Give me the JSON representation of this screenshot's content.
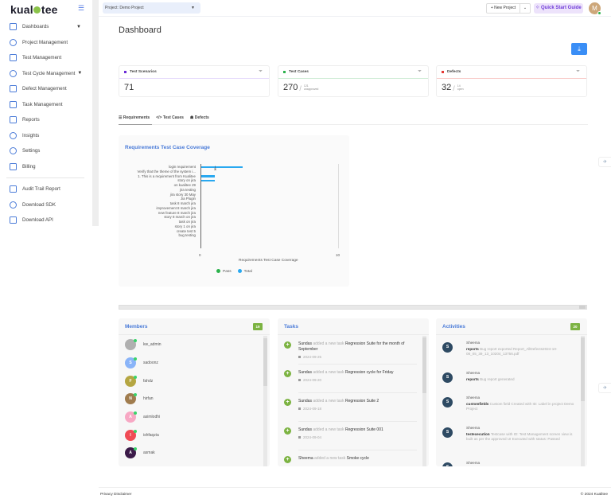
{
  "app": {
    "logo": "kualitee",
    "collapse_icon": "collapse-menu-icon"
  },
  "sidebar": {
    "items": [
      {
        "label": "Dashboards",
        "icon": "dashboard-icon",
        "has_caret": true
      },
      {
        "label": "Project Management",
        "icon": "project-icon"
      },
      {
        "label": "Test Management",
        "icon": "test-management-icon"
      },
      {
        "label": "Test Cycle Management",
        "icon": "test-cycle-icon",
        "has_caret": true
      },
      {
        "label": "Defect Management",
        "icon": "defect-icon"
      },
      {
        "label": "Task Management",
        "icon": "task-icon"
      },
      {
        "label": "Reports",
        "icon": "reports-icon"
      },
      {
        "label": "Insights",
        "icon": "insights-icon"
      },
      {
        "label": "Settings",
        "icon": "settings-icon"
      },
      {
        "label": "Billing",
        "icon": "billing-icon"
      }
    ],
    "secondary_items": [
      {
        "label": "Audit Trail Report",
        "icon": "audit-icon"
      },
      {
        "label": "Download SDK",
        "icon": "sdk-icon"
      },
      {
        "label": "Download API",
        "icon": "api-icon"
      }
    ]
  },
  "topbar": {
    "project_label": "Project:",
    "project_value": "Demo Project",
    "new_project": "+ New Project",
    "quick_start": "Quick Start Guide",
    "avatar_initial": "M"
  },
  "page": {
    "title": "Dashboard"
  },
  "stats": [
    {
      "label": "Test Scenarios",
      "value": "71",
      "color": "#6a2bd8",
      "accent": "#e4d9fb"
    },
    {
      "label": "Test Cases",
      "value": "270",
      "sub_value": "121",
      "sub_label": "unapproved",
      "color": "#2bb24c",
      "accent": "#cdebd4"
    },
    {
      "label": "Defects",
      "value": "32",
      "sub_value": "14",
      "sub_label": "open",
      "color": "#e53935",
      "accent": "#f8c9c7"
    }
  ],
  "tabs": [
    {
      "label": "Requirements",
      "icon": "list-icon",
      "active": true
    },
    {
      "label": "Test Cases",
      "icon": "code-icon"
    },
    {
      "label": "Defects",
      "icon": "bug-icon"
    }
  ],
  "chart_data": {
    "type": "bar",
    "title": "Requirements Test Case Coverage",
    "orientation": "horizontal",
    "categories": [
      "login requirement",
      "Verify that the theme of the system i...",
      "1. This is a requirement from Kualitee",
      "story on jira",
      "on kualitee 29",
      "jira testing",
      "jira story 30 May",
      "Jia Plugin",
      "task 8 march jira",
      "improvement 8 march jira",
      "new feature 8 march jira",
      "story 8 march on jira",
      "task on jira",
      "story 1 on jira",
      "create test 5",
      "bug testing"
    ],
    "series": [
      {
        "name": "Pass",
        "color": "#2bb24c",
        "values": [
          0,
          0,
          0,
          0,
          0,
          0,
          0,
          0,
          0,
          0,
          0,
          0,
          0,
          0,
          0,
          0
        ]
      },
      {
        "name": "Total",
        "color": "#29a8f0",
        "values": [
          3,
          0,
          1,
          1,
          0,
          0,
          0,
          0,
          0,
          0,
          0,
          0,
          0,
          0,
          0,
          0
        ]
      }
    ],
    "xlabel": "Requirements Test Case Coverage",
    "ylabel": "",
    "xlim": [
      0,
      10
    ],
    "x_ticks": [
      "0",
      "10"
    ],
    "legend_position": "bottom",
    "grid": false
  },
  "chart_ui": {
    "download_icon": "download-icon"
  },
  "members": {
    "title": "Members",
    "count": "19",
    "items": [
      {
        "name": "kw_admin",
        "initial": "",
        "color": "#b0b0b0"
      },
      {
        "name": "sadoonz",
        "initial": "S",
        "color": "#8ab4f8"
      },
      {
        "name": "fahdz",
        "initial": "F",
        "color": "#b5a642"
      },
      {
        "name": "hirfan",
        "initial": "N",
        "color": "#a07c4e"
      },
      {
        "name": "asimlodhi",
        "initial": "A",
        "color": "#f7a8c4"
      },
      {
        "name": "ishfaqzia",
        "initial": "I",
        "color": "#f04b55"
      },
      {
        "name": "asmak",
        "initial": "A",
        "color": "#3b1a48"
      }
    ]
  },
  "tasks": {
    "title": "Tasks",
    "items": [
      {
        "user": "Sundas",
        "action": "added a new task",
        "task": "Regression Suite for the month of September",
        "date": "2024-09-25"
      },
      {
        "user": "Sundas",
        "action": "added a new task",
        "task": "Regression cycle for Friday",
        "date": "2024-09-20"
      },
      {
        "user": "Sundas",
        "action": "added a new task",
        "task": "Regression Suite 2",
        "date": "2024-09-18"
      },
      {
        "user": "Sundas",
        "action": "added a new task",
        "task": "Regression Suite 001",
        "date": "2024-09-04"
      },
      {
        "user": "Sheema",
        "action": "added a new task",
        "task": "Smoke cycle",
        "date": ""
      }
    ]
  },
  "activities": {
    "title": "Activities",
    "count": "20",
    "items": [
      {
        "user": "Sheema",
        "initial": "S",
        "type": "reports",
        "message": "Bug report exported Report_AllDefects2024-10-08_05_39_13_10204_13756.pdf"
      },
      {
        "user": "Sheema",
        "initial": "S",
        "type": "reports",
        "message": "Bug report generated"
      },
      {
        "user": "Sheema",
        "initial": "S",
        "type": "customfields",
        "message": "Custom field Created with ID: Label in project Demo Project"
      },
      {
        "user": "Sheema",
        "initial": "S",
        "type": "testexecution",
        "message": "Testcase with ID: Test Management screen view is built as per the approved UI Executed with status: Passed"
      },
      {
        "user": "Sheema",
        "initial": "S",
        "type": "",
        "message": ""
      }
    ]
  },
  "footer": {
    "left": "Privacy Disclaimer",
    "right": "© 2024 Kualitee"
  }
}
